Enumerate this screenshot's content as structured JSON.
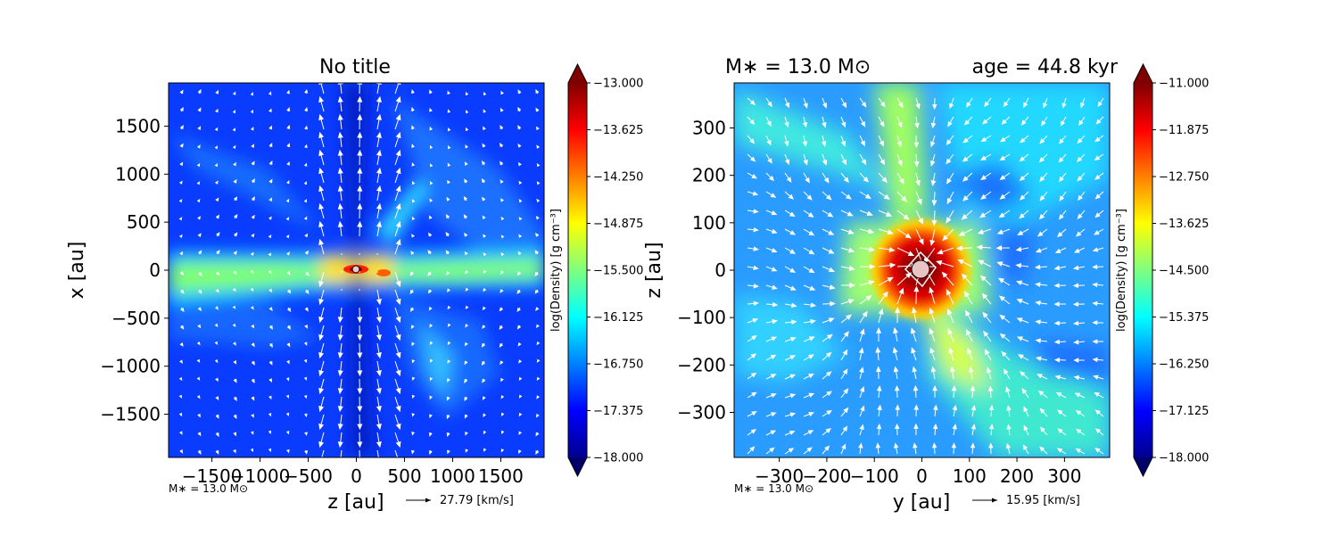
{
  "chart_data": [
    {
      "type": "heatmap",
      "title": "No title",
      "xlabel": "z [au]",
      "ylabel": "x [au]",
      "xlim": [
        -1950,
        1950
      ],
      "ylim": [
        -1950,
        1950
      ],
      "xticks": [
        -1500,
        -1000,
        -500,
        0,
        500,
        1000,
        1500
      ],
      "xtick_labels": [
        "−1500",
        "−1000",
        "−500",
        "0",
        "500",
        "1000",
        "1500"
      ],
      "yticks": [
        -1500,
        -1000,
        -500,
        0,
        500,
        1000,
        1500
      ],
      "ytick_labels": [
        "−1500",
        "−1000",
        "−500",
        "0",
        "500",
        "1000",
        "1500"
      ],
      "colorbar": {
        "label": "log(Density) [g cm⁻³]",
        "range": [
          -18.0,
          -13.0
        ],
        "ticks": [
          -13.0,
          -13.625,
          -14.25,
          -14.875,
          -15.5,
          -16.125,
          -16.75,
          -17.375,
          -18.0
        ],
        "tick_labels": [
          "−13.000",
          "−13.625",
          "−14.250",
          "−14.875",
          "−15.500",
          "−16.125",
          "−16.750",
          "−17.375",
          "−18.000"
        ],
        "colormap": "jet",
        "extend": "both"
      },
      "mass_note": "M∗ = 13.0 M⊙",
      "quiver_key": "27.79 [km/s]"
    },
    {
      "type": "heatmap",
      "title_left": "M∗ = 13.0 M⊙",
      "title_right": "age = 44.8 kyr",
      "xlabel": "y [au]",
      "ylabel": "z [au]",
      "xlim": [
        -395,
        395
      ],
      "ylim": [
        -395,
        395
      ],
      "xticks": [
        -300,
        -200,
        -100,
        0,
        100,
        200,
        300
      ],
      "xtick_labels": [
        "−300",
        "−200",
        "−100",
        "0",
        "100",
        "200",
        "300"
      ],
      "yticks": [
        -300,
        -200,
        -100,
        0,
        100,
        200,
        300
      ],
      "ytick_labels": [
        "−300",
        "−200",
        "−100",
        "0",
        "100",
        "200",
        "300"
      ],
      "colorbar": {
        "label": "log(Density) [g cm⁻³]",
        "range": [
          -18.0,
          -11.0
        ],
        "ticks": [
          -11.0,
          -11.875,
          -12.75,
          -13.625,
          -14.5,
          -15.375,
          -16.25,
          -17.125,
          -18.0
        ],
        "tick_labels": [
          "−11.000",
          "−11.875",
          "−12.750",
          "−13.625",
          "−14.500",
          "−15.375",
          "−16.250",
          "−17.125",
          "−18.000"
        ],
        "colormap": "jet",
        "extend": "both"
      },
      "mass_note": "M∗ = 13.0 M⊙",
      "quiver_key": "15.95 [km/s]"
    }
  ]
}
